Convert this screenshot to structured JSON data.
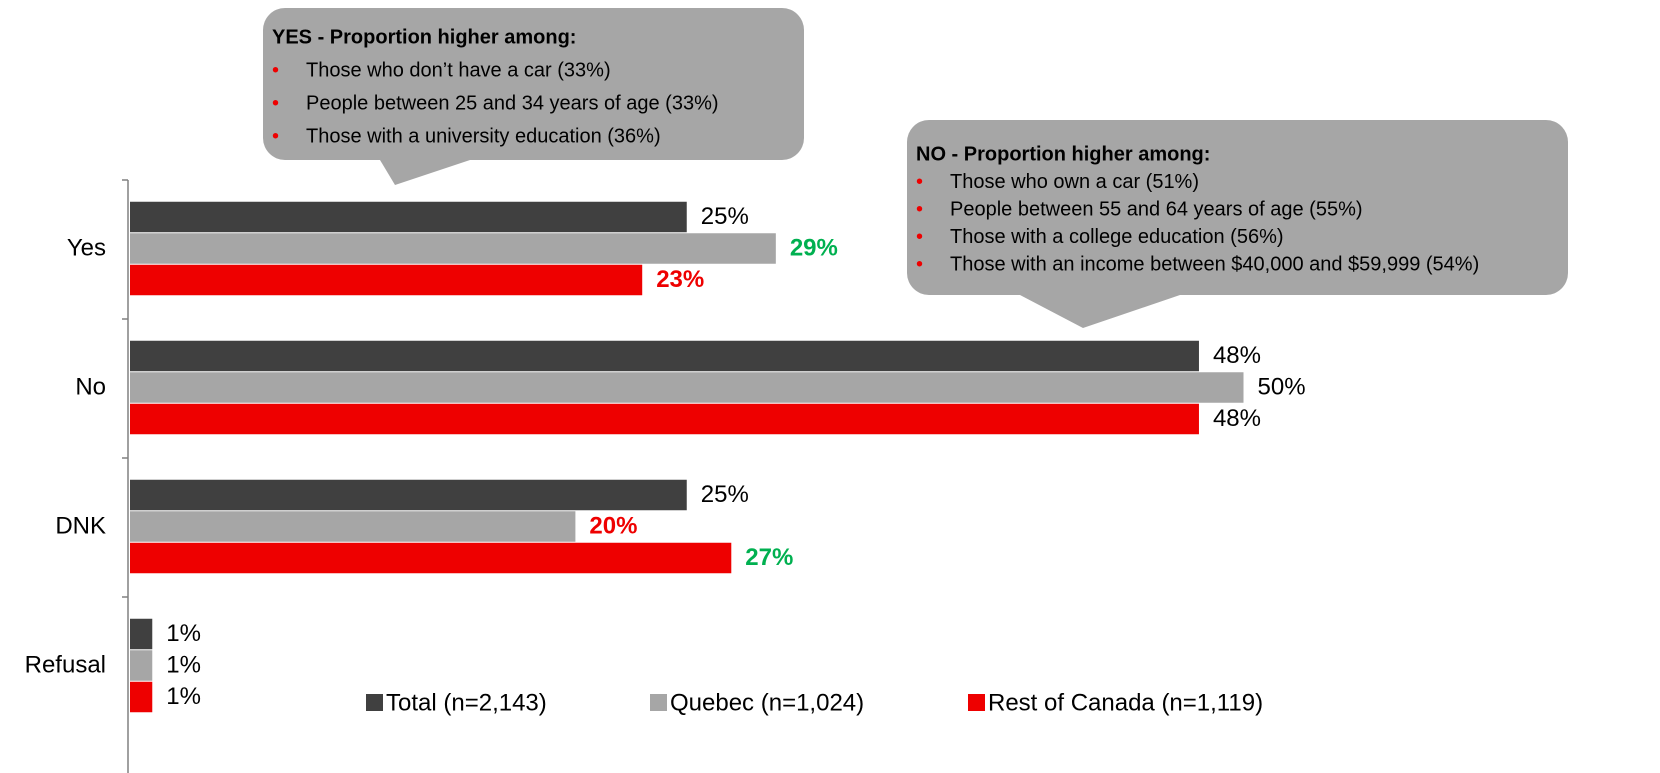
{
  "chart_data": {
    "type": "bar",
    "orientation": "horizontal",
    "categories": [
      "Yes",
      "No",
      "DNK",
      "Refusal"
    ],
    "series": [
      {
        "name": "Total (n=2,143)",
        "color": "#404040",
        "values": [
          25,
          48,
          25,
          1
        ],
        "value_labels": [
          "25%",
          "48%",
          "25%",
          "1%"
        ],
        "value_label_colors": [
          "#000000",
          "#000000",
          "#000000",
          "#000000"
        ]
      },
      {
        "name": "Quebec (n=1,024)",
        "color": "#a6a6a6",
        "values": [
          29,
          50,
          20,
          1
        ],
        "value_labels": [
          "29%",
          "50%",
          "20%",
          "1%"
        ],
        "value_label_colors": [
          "#00b050",
          "#000000",
          "#ee0000",
          "#000000"
        ]
      },
      {
        "name": "Rest of Canada (n=1,119)",
        "color": "#ee0000",
        "values": [
          23,
          48,
          27,
          1
        ],
        "value_labels": [
          "23%",
          "48%",
          "27%",
          "1%"
        ],
        "value_label_colors": [
          "#ee0000",
          "#000000",
          "#00b050",
          "#000000"
        ]
      }
    ],
    "legend": "bottom",
    "annotations": [
      {
        "title": "YES - Proportion higher among:",
        "items": [
          "Those who don’t have a car (33%)",
          "People between 25 and 34 years of age (33%)",
          "Those with a university education (36%)"
        ]
      },
      {
        "title": "NO - Proportion higher among:",
        "items": [
          "Those who own a car (51%)",
          "People between 55 and 64 years of age (55%)",
          "Those with a college education (56%)",
          "Those with an income between $40,000 and $59,999 (54%)"
        ]
      }
    ]
  }
}
